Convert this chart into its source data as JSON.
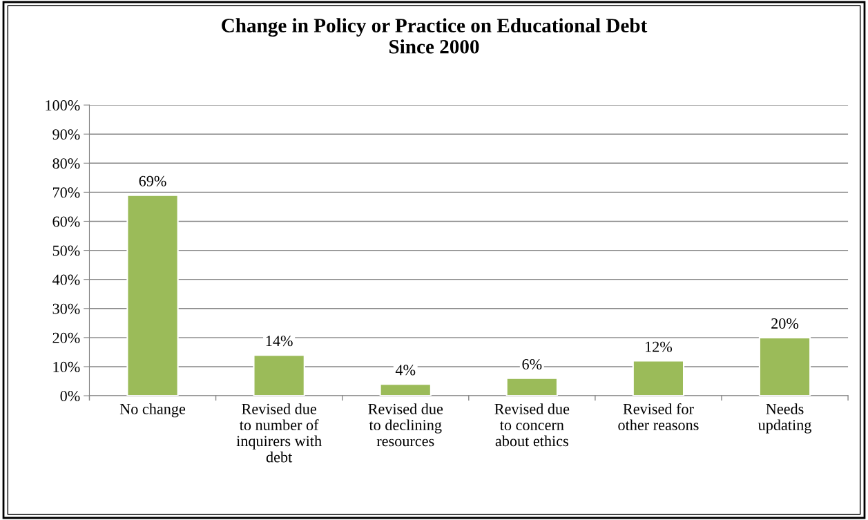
{
  "chart_data": {
    "type": "bar",
    "title": "Change in Policy or Practice on Educational Debt\nSince 2000",
    "categories": [
      "No change",
      "Revised due\nto number of\ninquirers with\ndebt",
      "Revised due\nto declining\nresources",
      "Revised due\nto concern\nabout ethics",
      "Revised for\nother reasons",
      "Needs\nupdating"
    ],
    "values": [
      69,
      14,
      4,
      6,
      12,
      20
    ],
    "value_labels": [
      "69%",
      "14%",
      "4%",
      "6%",
      "12%",
      "20%"
    ],
    "color": "#9bbb59",
    "ylim": [
      0,
      100
    ],
    "yticks": [
      {
        "value": 0,
        "label": "0%"
      },
      {
        "value": 10,
        "label": "10%"
      },
      {
        "value": 20,
        "label": "20%"
      },
      {
        "value": 30,
        "label": "30%"
      },
      {
        "value": 40,
        "label": "40%"
      },
      {
        "value": 50,
        "label": "50%"
      },
      {
        "value": 60,
        "label": "60%"
      },
      {
        "value": 70,
        "label": "70%"
      },
      {
        "value": 80,
        "label": "80%"
      },
      {
        "value": 90,
        "label": "90%"
      },
      {
        "value": 100,
        "label": "100%"
      }
    ],
    "grid": "y",
    "legend": false
  }
}
